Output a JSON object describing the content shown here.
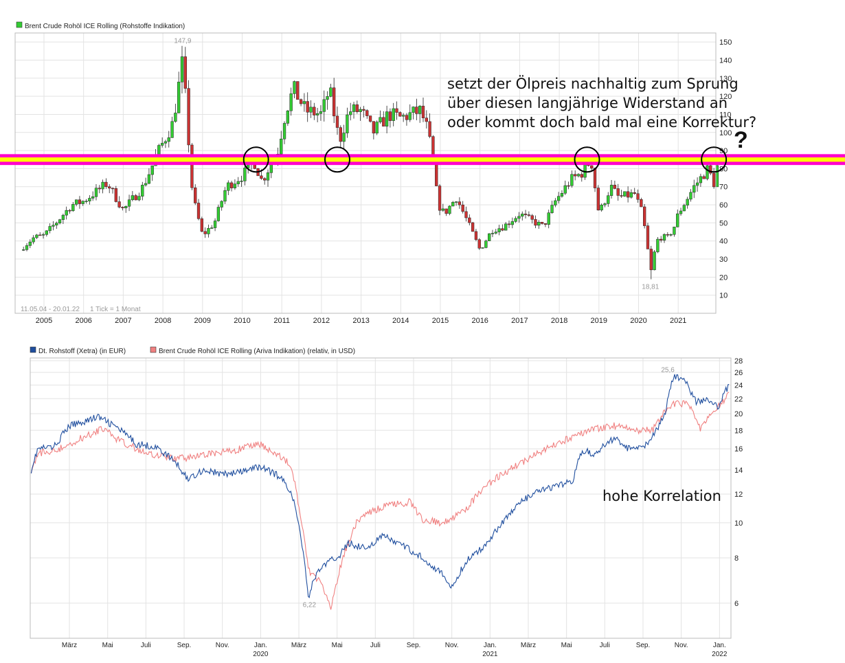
{
  "chart_data": [
    {
      "type": "candlestick",
      "title": "Brent Crude Rohöl ICE Rolling (Rohstoffe Indikation)",
      "legend_color": "#33cc33",
      "up_color": "#33cc33",
      "down_color": "#cc3333",
      "ylim": [
        0,
        155
      ],
      "yticks": [
        10,
        20,
        30,
        40,
        50,
        60,
        70,
        80,
        90,
        100,
        110,
        120,
        130,
        140,
        150
      ],
      "x_years": [
        "2005",
        "2006",
        "2007",
        "2008",
        "2009",
        "2010",
        "2011",
        "2012",
        "2013",
        "2014",
        "2015",
        "2016",
        "2017",
        "2018",
        "2019",
        "2020",
        "2021"
      ],
      "range_label": "11.05.04 - 20.01.22",
      "tick_label": "1 Tick = 1 Monat",
      "max_label": "147,9",
      "max_value": 147.9,
      "max_year": 2008.5,
      "min_label": "18,81",
      "min_value": 18.81,
      "min_year": 2020.3,
      "monthly_close_anchors": [
        [
          2004.4,
          35
        ],
        [
          2004.75,
          42
        ],
        [
          2005.0,
          43
        ],
        [
          2005.3,
          50
        ],
        [
          2005.7,
          60
        ],
        [
          2006.0,
          62
        ],
        [
          2006.6,
          72
        ],
        [
          2007.0,
          57
        ],
        [
          2007.5,
          70
        ],
        [
          2007.9,
          90
        ],
        [
          2008.25,
          105
        ],
        [
          2008.5,
          140
        ],
        [
          2008.75,
          65
        ],
        [
          2009.0,
          43
        ],
        [
          2009.3,
          50
        ],
        [
          2009.6,
          70
        ],
        [
          2010.0,
          76
        ],
        [
          2010.3,
          84
        ],
        [
          2010.5,
          73
        ],
        [
          2010.9,
          90
        ],
        [
          2011.1,
          112
        ],
        [
          2011.3,
          124
        ],
        [
          2011.6,
          112
        ],
        [
          2012.0,
          110
        ],
        [
          2012.2,
          124
        ],
        [
          2012.45,
          95
        ],
        [
          2012.7,
          112
        ],
        [
          2013.0,
          112
        ],
        [
          2013.3,
          100
        ],
        [
          2013.7,
          110
        ],
        [
          2014.0,
          108
        ],
        [
          2014.5,
          112
        ],
        [
          2014.7,
          100
        ],
        [
          2014.95,
          60
        ],
        [
          2015.1,
          55
        ],
        [
          2015.4,
          64
        ],
        [
          2015.7,
          50
        ],
        [
          2016.0,
          35
        ],
        [
          2016.3,
          46
        ],
        [
          2016.6,
          48
        ],
        [
          2017.0,
          55
        ],
        [
          2017.4,
          50
        ],
        [
          2017.6,
          48
        ],
        [
          2017.9,
          62
        ],
        [
          2018.3,
          74
        ],
        [
          2018.6,
          78
        ],
        [
          2018.8,
          85
        ],
        [
          2019.0,
          55
        ],
        [
          2019.3,
          70
        ],
        [
          2019.5,
          64
        ],
        [
          2019.9,
          66
        ],
        [
          2020.1,
          55
        ],
        [
          2020.3,
          25
        ],
        [
          2020.5,
          42
        ],
        [
          2020.75,
          42
        ],
        [
          2020.9,
          48
        ],
        [
          2021.0,
          55
        ],
        [
          2021.4,
          70
        ],
        [
          2021.75,
          80
        ],
        [
          2021.9,
          72
        ],
        [
          2022.05,
          88
        ]
      ],
      "resistance_band": [
        82,
        88
      ],
      "resistance_colors": [
        "#ff00cc",
        "#ffff00"
      ],
      "annotation_lines": [
        "setzt der Ölpreis nachhaltig zum Sprung",
        "über diesen langjährige Widerstand an",
        "oder kommt doch bald mal eine Korrektur?"
      ],
      "question_mark": "?",
      "circled_years": [
        2010.35,
        2012.4,
        2018.7,
        2021.9
      ],
      "circled_level": 85
    },
    {
      "type": "line",
      "scale": "log",
      "ylim": [
        4.8,
        28.5
      ],
      "yticks": [
        6,
        8,
        10,
        12,
        14,
        16,
        18,
        20,
        22,
        24,
        26,
        28
      ],
      "x_months": [
        {
          "label": "März",
          "t": 2
        },
        {
          "label": "Mai",
          "t": 4
        },
        {
          "label": "Juli",
          "t": 6
        },
        {
          "label": "Sep.",
          "t": 8
        },
        {
          "label": "Nov.",
          "t": 10
        },
        {
          "label": "Jan.",
          "sub": "2020",
          "t": 12
        },
        {
          "label": "März",
          "t": 14
        },
        {
          "label": "Mai",
          "t": 16
        },
        {
          "label": "Juli",
          "t": 18
        },
        {
          "label": "Sep.",
          "t": 20
        },
        {
          "label": "Nov.",
          "t": 22
        },
        {
          "label": "Jan.",
          "sub": "2021",
          "t": 24
        },
        {
          "label": "März",
          "t": 26
        },
        {
          "label": "Mai",
          "t": 28
        },
        {
          "label": "Juli",
          "t": 30
        },
        {
          "label": "Sep.",
          "t": 32
        },
        {
          "label": "Nov.",
          "t": 34
        },
        {
          "label": "Jan.",
          "sub": "2022",
          "t": 36
        }
      ],
      "xlim": [
        -0.05,
        36.6
      ],
      "series": [
        {
          "name": "Dt. Rohstoff (Xetra) (in EUR)",
          "color": "#1f4e9e",
          "anchors": [
            [
              0,
              14.0
            ],
            [
              0.35,
              16.0
            ],
            [
              1.2,
              16.2
            ],
            [
              2,
              18.5
            ],
            [
              3.5,
              19.6
            ],
            [
              4.5,
              18.3
            ],
            [
              5.5,
              16.5
            ],
            [
              6.5,
              16.2
            ],
            [
              7.5,
              14.8
            ],
            [
              8.2,
              13.2
            ],
            [
              9,
              14.0
            ],
            [
              10,
              13.6
            ],
            [
              11,
              13.8
            ],
            [
              12,
              14.3
            ],
            [
              13,
              13.4
            ],
            [
              13.6,
              12.2
            ],
            [
              14.1,
              9.2
            ],
            [
              14.5,
              6.3
            ],
            [
              15,
              7.4
            ],
            [
              15.6,
              7.8
            ],
            [
              16.2,
              8.2
            ],
            [
              16.6,
              8.8
            ],
            [
              17.5,
              8.5
            ],
            [
              18.4,
              9.2
            ],
            [
              19.5,
              8.6
            ],
            [
              20.5,
              8.0
            ],
            [
              21.5,
              7.2
            ],
            [
              22.0,
              6.6
            ],
            [
              22.8,
              7.9
            ],
            [
              23.6,
              8.5
            ],
            [
              24.5,
              9.8
            ],
            [
              25.5,
              11.3
            ],
            [
              26.5,
              12.2
            ],
            [
              27.5,
              12.6
            ],
            [
              28.3,
              13.0
            ],
            [
              28.8,
              15.8
            ],
            [
              29.5,
              15.5
            ],
            [
              30.5,
              17.2
            ],
            [
              31.2,
              16.0
            ],
            [
              32.2,
              16.5
            ],
            [
              32.8,
              18.2
            ],
            [
              33.2,
              20.5
            ],
            [
              33.6,
              25.5
            ],
            [
              34.2,
              24.5
            ],
            [
              34.8,
              21.5
            ],
            [
              35.4,
              22.0
            ],
            [
              35.9,
              20.8
            ],
            [
              36.5,
              24.0
            ]
          ]
        },
        {
          "name": "Brent Crude Rohöl ICE Rolling (Ariva Indikation) (relativ, in USD)",
          "color": "#f08080",
          "anchors": [
            [
              0,
              14.0
            ],
            [
              0.35,
              15.5
            ],
            [
              1.5,
              16.0
            ],
            [
              2.5,
              17.0
            ],
            [
              3.8,
              18.2
            ],
            [
              4.5,
              17.0
            ],
            [
              5.5,
              16.0
            ],
            [
              6.5,
              15.4
            ],
            [
              7.5,
              15.0
            ],
            [
              8.5,
              15.2
            ],
            [
              9.5,
              15.5
            ],
            [
              10.5,
              15.8
            ],
            [
              12,
              16.5
            ],
            [
              13,
              15.2
            ],
            [
              13.6,
              14.5
            ],
            [
              14.1,
              10.2
            ],
            [
              14.5,
              7.4
            ],
            [
              15.2,
              6.8
            ],
            [
              15.7,
              5.8
            ],
            [
              16.3,
              8.0
            ],
            [
              17,
              10.0
            ],
            [
              17.8,
              10.8
            ],
            [
              18.8,
              11.2
            ],
            [
              19.8,
              11.4
            ],
            [
              20.5,
              10.2
            ],
            [
              21.5,
              10.0
            ],
            [
              22.0,
              10.2
            ],
            [
              22.8,
              11.0
            ],
            [
              23.5,
              12.2
            ],
            [
              24.5,
              13.5
            ],
            [
              25.5,
              14.5
            ],
            [
              26.5,
              15.5
            ],
            [
              27.5,
              16.5
            ],
            [
              28.5,
              17.5
            ],
            [
              29.5,
              18.2
            ],
            [
              30.5,
              18.5
            ],
            [
              31.5,
              18.0
            ],
            [
              32.5,
              18.0
            ],
            [
              33.2,
              20.5
            ],
            [
              33.8,
              21.5
            ],
            [
              34.5,
              21.0
            ],
            [
              35.0,
              18.0
            ],
            [
              35.6,
              20.0
            ],
            [
              36.5,
              22.6
            ]
          ]
        }
      ],
      "max_label": "25,6",
      "max_value": 25.6,
      "max_t": 33.8,
      "min_label": "6,22",
      "min_value": 6.22,
      "min_t": 14.55,
      "annotation": "hohe Korrelation"
    }
  ]
}
